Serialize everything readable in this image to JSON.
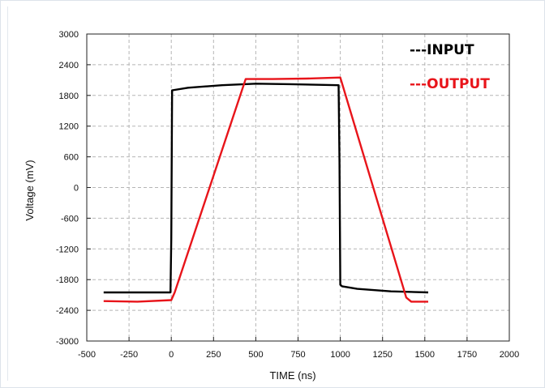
{
  "chart_data": {
    "type": "line",
    "title": "",
    "xlabel": "TIME (ns)",
    "ylabel": "Voltage (mV)",
    "xlim": [
      -500,
      2000
    ],
    "ylim": [
      -3000,
      3000
    ],
    "x_ticks": [
      -500,
      -250,
      0,
      250,
      500,
      750,
      1000,
      1250,
      1500,
      1750,
      2000
    ],
    "y_ticks": [
      3000,
      2400,
      1800,
      1200,
      600,
      0,
      -600,
      -1200,
      -1800,
      -2400,
      -3000
    ],
    "grid": true,
    "legend_position": "top-right",
    "series": [
      {
        "name": "---INPUT",
        "color": "#000000",
        "x": [
          -400,
          -200,
          -5,
          0,
          5,
          100,
          300,
          500,
          700,
          990,
          995,
          1000,
          1010,
          1100,
          1300,
          1520
        ],
        "y": [
          -2050,
          -2050,
          -2050,
          -1000,
          1900,
          1950,
          2000,
          2030,
          2020,
          2000,
          500,
          -1900,
          -1930,
          -1980,
          -2030,
          -2050
        ]
      },
      {
        "name": "---OUTPUT",
        "color": "#e8141a",
        "x": [
          -400,
          -200,
          0,
          20,
          440,
          600,
          800,
          1000,
          1390,
          1420,
          1520
        ],
        "y": [
          -2220,
          -2230,
          -2200,
          -2050,
          2120,
          2120,
          2130,
          2150,
          -2150,
          -2230,
          -2230
        ]
      }
    ]
  }
}
